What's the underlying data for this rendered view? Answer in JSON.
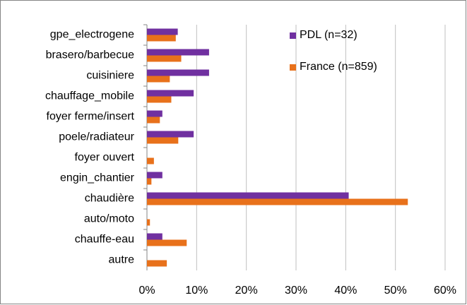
{
  "chart_data": {
    "type": "barh",
    "categories": [
      "gpe_electrogene",
      "brasero/barbecue",
      "cuisiniere",
      "chauffage_mobile",
      "foyer ferme/insert",
      "poele/radiateur",
      "foyer ouvert",
      "engin_chantier",
      "chaudière",
      "auto/moto",
      "chauffe-eau",
      "autre"
    ],
    "series": [
      {
        "name": "PDL (n=32)",
        "color": "#7030a0",
        "values": [
          6.2,
          12.5,
          12.5,
          9.4,
          3.1,
          9.4,
          0,
          3.1,
          40.6,
          0,
          3.1,
          0
        ]
      },
      {
        "name": "France (n=859)",
        "color": "#e8711b",
        "values": [
          5.8,
          6.9,
          4.6,
          4.9,
          2.6,
          6.3,
          1.4,
          0.9,
          52.5,
          0.6,
          8.0,
          4.0
        ]
      }
    ],
    "xlim": [
      0,
      60
    ],
    "xticks": [
      {
        "value": 0,
        "label": "0%"
      },
      {
        "value": 10,
        "label": "10%"
      },
      {
        "value": 20,
        "label": "20%"
      },
      {
        "value": 30,
        "label": "30%"
      },
      {
        "value": 40,
        "label": "40%"
      },
      {
        "value": 50,
        "label": "50%"
      },
      {
        "value": 60,
        "label": "60%"
      }
    ],
    "grid": true,
    "legend": "top-right"
  }
}
